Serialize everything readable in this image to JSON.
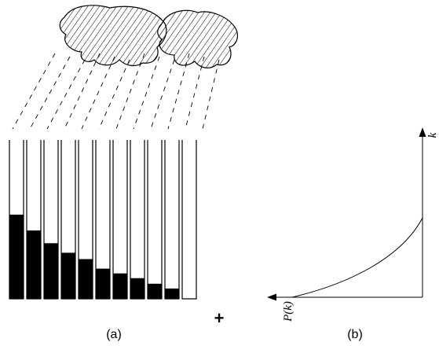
{
  "panel_a": {
    "caption": "(a)",
    "marker": "+",
    "tube_fill_fractions": [
      0.53,
      0.43,
      0.35,
      0.29,
      0.25,
      0.19,
      0.16,
      0.13,
      0.095,
      0.065
    ],
    "empty_tube_count": 1
  },
  "panel_b": {
    "caption": "(b)",
    "horizontal_axis_label": "P(k)",
    "vertical_axis_label": "k"
  },
  "colors": {
    "ink": "#000000",
    "background": "#ffffff"
  }
}
